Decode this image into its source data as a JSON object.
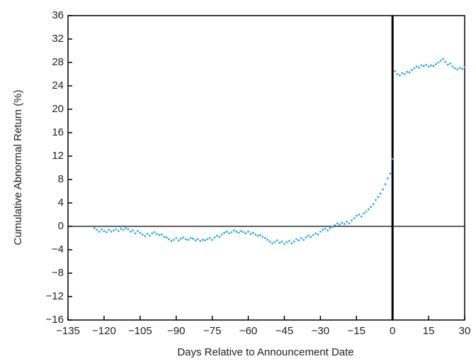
{
  "chart_data": {
    "type": "scatter",
    "xlabel": "Days Relative to Announcement Date",
    "ylabel": "Cumulative Abnormal Return (%)",
    "color": "#29abe2",
    "xlim": [
      -135,
      30
    ],
    "ylim": [
      -16,
      36
    ],
    "xticks": [
      {
        "value": -135,
        "label": "−135"
      },
      {
        "value": -120,
        "label": "−120"
      },
      {
        "value": -105,
        "label": "−105"
      },
      {
        "value": -90,
        "label": "−90"
      },
      {
        "value": -75,
        "label": "−75"
      },
      {
        "value": -60,
        "label": "−60"
      },
      {
        "value": -45,
        "label": "−45"
      },
      {
        "value": -30,
        "label": "−30"
      },
      {
        "value": -15,
        "label": "−15"
      },
      0,
      15,
      30
    ],
    "yticks": [
      {
        "value": -16,
        "label": "−16"
      },
      {
        "value": -12,
        "label": "−12"
      },
      {
        "value": -8,
        "label": "−8"
      },
      {
        "value": -4,
        "label": "−4"
      },
      0,
      4,
      8,
      12,
      16,
      20,
      24,
      28,
      32,
      36
    ],
    "x": [
      -124,
      -123,
      -122,
      -121,
      -120,
      -119,
      -118,
      -117,
      -116,
      -115,
      -114,
      -113,
      -112,
      -111,
      -110,
      -109,
      -108,
      -107,
      -106,
      -105,
      -104,
      -103,
      -102,
      -101,
      -100,
      -99,
      -98,
      -97,
      -96,
      -95,
      -94,
      -93,
      -92,
      -91,
      -90,
      -89,
      -88,
      -87,
      -86,
      -85,
      -84,
      -83,
      -82,
      -81,
      -80,
      -79,
      -78,
      -77,
      -76,
      -75,
      -74,
      -73,
      -72,
      -71,
      -70,
      -69,
      -68,
      -67,
      -66,
      -65,
      -64,
      -63,
      -62,
      -61,
      -60,
      -59,
      -58,
      -57,
      -56,
      -55,
      -54,
      -53,
      -52,
      -51,
      -50,
      -49,
      -48,
      -47,
      -46,
      -45,
      -44,
      -43,
      -42,
      -41,
      -40,
      -39,
      -38,
      -37,
      -36,
      -35,
      -34,
      -33,
      -32,
      -31,
      -30,
      -29,
      -28,
      -27,
      -26,
      -25,
      -24,
      -23,
      -22,
      -21,
      -20,
      -19,
      -18,
      -17,
      -16,
      -15,
      -14,
      -13,
      -12,
      -11,
      -10,
      -9,
      -8,
      -7,
      -6,
      -5,
      -4,
      -3,
      -2,
      -1,
      0,
      1,
      2,
      3,
      4,
      5,
      6,
      7,
      8,
      9,
      10,
      11,
      12,
      13,
      14,
      15,
      16,
      17,
      18,
      19,
      20,
      21,
      22,
      23,
      24,
      25,
      26,
      27,
      28,
      29,
      30
    ],
    "values": [
      -0.3,
      -0.6,
      -0.9,
      -0.5,
      -0.8,
      -1.0,
      -0.6,
      -0.9,
      -0.7,
      -0.5,
      -0.8,
      -0.4,
      -0.6,
      -0.3,
      -0.5,
      -0.9,
      -0.7,
      -1.2,
      -0.8,
      -1.1,
      -1.4,
      -1.7,
      -1.3,
      -1.6,
      -1.2,
      -1.0,
      -1.3,
      -1.5,
      -1.4,
      -1.8,
      -1.9,
      -2.2,
      -2.5,
      -2.3,
      -2.0,
      -2.4,
      -2.1,
      -1.9,
      -2.2,
      -2.3,
      -2.0,
      -2.1,
      -2.4,
      -2.2,
      -2.5,
      -2.3,
      -2.4,
      -2.2,
      -2.0,
      -2.3,
      -1.9,
      -1.6,
      -1.8,
      -1.4,
      -1.1,
      -0.9,
      -1.2,
      -1.0,
      -0.7,
      -0.9,
      -1.1,
      -0.8,
      -1.0,
      -1.2,
      -0.9,
      -1.3,
      -1.1,
      -1.4,
      -1.6,
      -1.5,
      -1.8,
      -2.0,
      -2.3,
      -2.6,
      -2.9,
      -2.7,
      -2.4,
      -2.8,
      -2.6,
      -3.0,
      -2.7,
      -2.5,
      -2.9,
      -2.6,
      -2.2,
      -2.4,
      -2.0,
      -2.3,
      -1.9,
      -1.6,
      -1.8,
      -1.5,
      -1.2,
      -1.4,
      -0.9,
      -0.6,
      -0.4,
      -0.7,
      -0.3,
      -0.1,
      0.2,
      0.5,
      0.3,
      0.6,
      0.4,
      0.8,
      0.5,
      1.0,
      1.4,
      1.8,
      2.0,
      1.7,
      2.2,
      2.5,
      2.9,
      3.3,
      3.8,
      4.5,
      5.0,
      5.6,
      6.3,
      7.2,
      8.2,
      9.0,
      11.5,
      26.5,
      26.0,
      25.8,
      26.2,
      26.0,
      26.4,
      26.3,
      26.7,
      27.0,
      27.3,
      27.1,
      27.5,
      27.4,
      27.6,
      27.3,
      27.5,
      27.4,
      27.7,
      28.0,
      28.3,
      28.6,
      28.1,
      27.6,
      27.8,
      27.3,
      27.0,
      26.8,
      27.1,
      26.9,
      27.2
    ]
  }
}
